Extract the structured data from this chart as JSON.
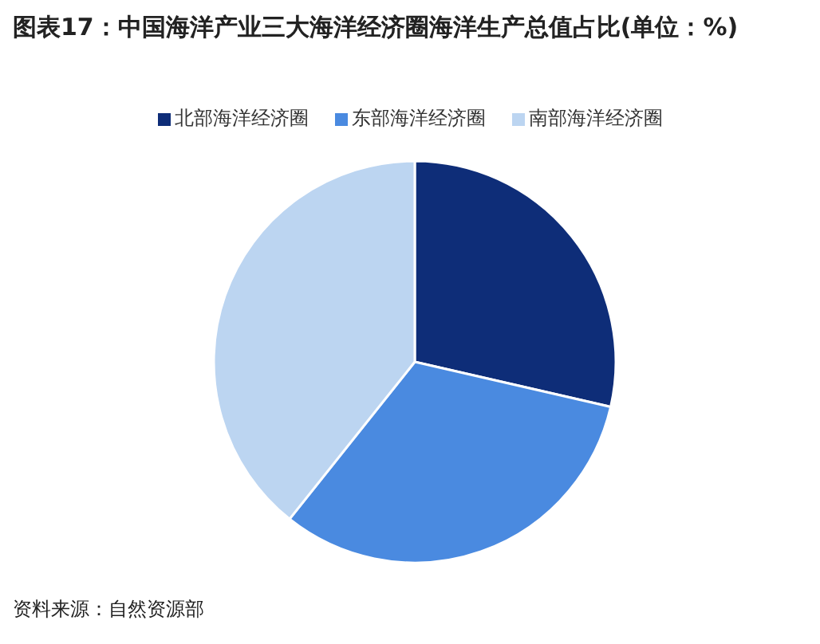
{
  "chart_data": {
    "type": "pie",
    "title": "图表17：中国海洋产业三大海洋经济圈海洋生产总值占比(单位：%)",
    "categories": [
      "北部海洋经济圈",
      "东部海洋经济圈",
      "南部海洋经济圈"
    ],
    "values": [
      28.6,
      32.1,
      39.3
    ],
    "colors": [
      "#0e2d78",
      "#4a8ae0",
      "#bcd5f1"
    ],
    "legend": "top",
    "annotations": [
      "资料来源：自然资源部"
    ]
  }
}
